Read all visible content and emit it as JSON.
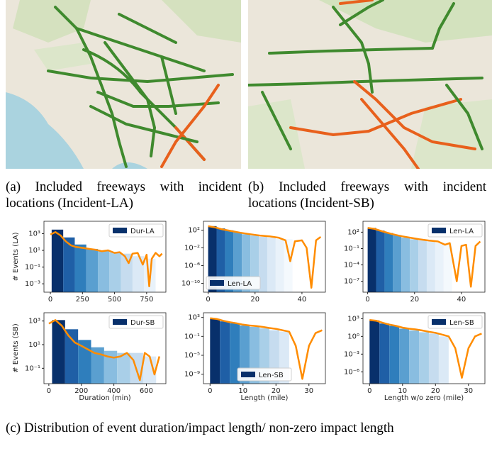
{
  "captions": {
    "a": "(a) Included freeways with incident locations (Incident-LA)",
    "b": "(b) Included freeways with incident locations (Incident-SB)",
    "c": "(c) Distribution of event duration/impact length/ non-zero impact length"
  },
  "chart_data": [
    {
      "type": "histogram",
      "name": "Dur-LA",
      "ylabel": "# Events (LA)",
      "legend": "upper right",
      "log": true,
      "bins": [
        10,
        100,
        190,
        280,
        370,
        460,
        550,
        640,
        730,
        820
      ],
      "counts": [
        3000,
        350,
        50,
        15,
        10,
        6,
        4,
        2,
        1
      ],
      "colors": [
        "#08306b",
        "#1f5fa6",
        "#2f7ebc",
        "#5a9fd0",
        "#89bde0",
        "#a9cfe8",
        "#c6dcef",
        "#dbe9f6",
        "#e9f2fa"
      ],
      "kde": {
        "color": "#ff8c00",
        "x": [
          0,
          40,
          80,
          120,
          160,
          200,
          250,
          300,
          350,
          400,
          450,
          500,
          540,
          580,
          610,
          640,
          680,
          720,
          750,
          770,
          790,
          820,
          850,
          870
        ],
        "values": [
          800,
          1500,
          600,
          120,
          40,
          25,
          20,
          15,
          12,
          8,
          10,
          5,
          6,
          2,
          0.3,
          4,
          5,
          0.2,
          3,
          0.0005,
          1,
          5,
          2,
          4
        ]
      },
      "xlim": [
        -50,
        900
      ],
      "xticks": [
        0,
        250,
        500,
        750
      ],
      "ylim": [
        0.0001,
        30000
      ],
      "yticks": [
        {
          "value": 1000,
          "label": "10³"
        },
        {
          "value": 10,
          "label": "10¹"
        },
        {
          "value": 0.1,
          "label": "10⁻¹"
        },
        {
          "value": 0.001,
          "label": "10⁻³"
        }
      ]
    },
    {
      "type": "histogram",
      "name": "Len-LA",
      "legend": "lower left",
      "log": true,
      "bins": [
        0,
        3.6,
        7.2,
        10.8,
        14.4,
        18,
        21.6,
        25.2,
        28.8,
        32.4,
        36
      ],
      "counts": [
        800,
        250,
        90,
        35,
        12,
        6,
        3,
        2,
        1,
        1
      ],
      "colors": [
        "#08306b",
        "#1f5fa6",
        "#2f7ebc",
        "#5a9fd0",
        "#89bde0",
        "#a9cfe8",
        "#c6dcef",
        "#dbe9f6",
        "#e9f2fa",
        "#f4f9fd"
      ],
      "kde": {
        "color": "#ff8c00",
        "x": [
          0,
          3,
          6,
          10,
          14,
          18,
          22,
          26,
          30,
          33,
          35,
          37,
          40,
          42,
          44,
          46,
          48
        ],
        "values": [
          800,
          400,
          150,
          60,
          25,
          12,
          6,
          4,
          2,
          0.5,
          1e-05,
          0.3,
          0.5,
          0.01,
          1e-11,
          0.5,
          3
        ]
      },
      "xlim": [
        -2,
        50
      ],
      "xticks": [
        0,
        20,
        40
      ],
      "ylim": [
        1e-12,
        10000
      ],
      "yticks": [
        {
          "value": 100,
          "label": "10²"
        },
        {
          "value": 0.01,
          "label": "10⁻²"
        },
        {
          "value": 1e-06,
          "label": "10⁻⁶"
        },
        {
          "value": 1e-10,
          "label": "10⁻¹⁰"
        }
      ]
    },
    {
      "type": "histogram",
      "name": "Len-LA",
      "legend": "upper right",
      "log": true,
      "bins": [
        0,
        3.6,
        7.2,
        10.8,
        14.4,
        18,
        21.6,
        25.2,
        28.8,
        32.4,
        36
      ],
      "counts": [
        600,
        200,
        70,
        30,
        10,
        5,
        3,
        2,
        1,
        1
      ],
      "colors": [
        "#08306b",
        "#1f5fa6",
        "#2f7ebc",
        "#5a9fd0",
        "#89bde0",
        "#a9cfe8",
        "#c6dcef",
        "#dbe9f6",
        "#e9f2fa",
        "#f4f9fd"
      ],
      "kde": {
        "color": "#ff8c00",
        "x": [
          0,
          3,
          6,
          10,
          14,
          18,
          22,
          26,
          30,
          33,
          35,
          38,
          40,
          42,
          44,
          46,
          48
        ],
        "values": [
          600,
          400,
          150,
          50,
          20,
          10,
          5,
          3,
          2,
          0.5,
          1,
          1e-07,
          0.3,
          0.5,
          1e-08,
          0.3,
          2
        ]
      },
      "xlim": [
        -2,
        50
      ],
      "xticks": [
        0,
        20,
        40
      ],
      "ylim": [
        1e-09,
        10000
      ],
      "yticks": [
        {
          "value": 100,
          "label": "10²"
        },
        {
          "value": 0.1,
          "label": "10⁻¹"
        },
        {
          "value": 0.0001,
          "label": "10⁻⁴"
        },
        {
          "value": 1e-07,
          "label": "10⁻⁷"
        }
      ]
    },
    {
      "type": "histogram",
      "name": "Dur-SB",
      "ylabel": "# Events (SB)",
      "xlabel": "Duration (min)",
      "legend": "upper right",
      "log": true,
      "bins": [
        20,
        100,
        180,
        260,
        340,
        420,
        500,
        580,
        660
      ],
      "counts": [
        1200,
        200,
        25,
        6,
        3,
        2,
        2,
        1
      ],
      "colors": [
        "#08306b",
        "#1f5fa6",
        "#2f7ebc",
        "#5a9fd0",
        "#89bde0",
        "#a9cfe8",
        "#c6dcef",
        "#dbe9f6"
      ],
      "kde": {
        "color": "#ff8c00",
        "x": [
          0,
          40,
          80,
          120,
          160,
          200,
          240,
          280,
          320,
          360,
          400,
          440,
          480,
          520,
          560,
          590,
          620,
          650,
          680
        ],
        "values": [
          600,
          1200,
          400,
          60,
          15,
          8,
          4,
          2,
          1.5,
          1,
          0.8,
          1,
          2,
          0.5,
          0.01,
          2,
          1,
          0.03,
          1
        ]
      },
      "xlim": [
        -30,
        720
      ],
      "xticks": [
        0,
        200,
        400,
        600
      ],
      "ylim": [
        0.005,
        5000
      ],
      "yticks": [
        {
          "value": 1000,
          "label": "10³"
        },
        {
          "value": 10,
          "label": "10¹"
        },
        {
          "value": 0.1,
          "label": "10⁻¹"
        }
      ]
    },
    {
      "type": "histogram",
      "name": "Len-SB",
      "xlabel": "Length (mile)",
      "legend": "lower center",
      "log": true,
      "bins": [
        0,
        3,
        6,
        9,
        12,
        15,
        18,
        21,
        24
      ],
      "counts": [
        500,
        150,
        60,
        20,
        10,
        5,
        2,
        1
      ],
      "colors": [
        "#08306b",
        "#1f5fa6",
        "#2f7ebc",
        "#5a9fd0",
        "#89bde0",
        "#a9cfe8",
        "#c6dcef",
        "#dbe9f6"
      ],
      "kde": {
        "color": "#ff8c00",
        "x": [
          0,
          2,
          4,
          6,
          8,
          10,
          12,
          14,
          16,
          18,
          20,
          22,
          24,
          26,
          28,
          30,
          32,
          34
        ],
        "values": [
          700,
          500,
          200,
          100,
          60,
          30,
          20,
          15,
          10,
          6,
          4,
          2,
          1,
          0.001,
          1e-10,
          0.001,
          0.5,
          2
        ]
      },
      "xlim": [
        -2,
        35
      ],
      "xticks": [
        0,
        10,
        20,
        30
      ],
      "ylim": [
        1e-11,
        10000
      ],
      "yticks": [
        {
          "value": 1000,
          "label": "10³"
        },
        {
          "value": 0.1,
          "label": "10⁻¹"
        },
        {
          "value": 1e-05,
          "label": "10⁻⁵"
        },
        {
          "value": 1e-09,
          "label": "10⁻⁹"
        }
      ]
    },
    {
      "type": "histogram",
      "name": "Len-SB",
      "xlabel": "Length w/o zero (mile)",
      "legend": "upper right",
      "log": true,
      "bins": [
        0,
        3,
        6,
        9,
        12,
        15,
        18,
        21,
        24
      ],
      "counts": [
        500,
        150,
        60,
        20,
        10,
        5,
        3,
        1
      ],
      "colors": [
        "#08306b",
        "#1f5fa6",
        "#2f7ebc",
        "#5a9fd0",
        "#89bde0",
        "#a9cfe8",
        "#c6dcef",
        "#dbe9f6"
      ],
      "kde": {
        "color": "#ff8c00",
        "x": [
          0,
          2,
          4,
          6,
          8,
          10,
          12,
          14,
          16,
          18,
          20,
          22,
          24,
          26,
          28,
          30,
          32,
          34
        ],
        "values": [
          600,
          450,
          200,
          100,
          60,
          30,
          20,
          15,
          10,
          6,
          4,
          2,
          1,
          0.01,
          1e-07,
          0.01,
          1,
          3
        ]
      },
      "xlim": [
        -2,
        35
      ],
      "xticks": [
        0,
        10,
        20,
        30
      ],
      "ylim": [
        1e-08,
        10000
      ],
      "yticks": [
        {
          "value": 1000,
          "label": "10³"
        },
        {
          "value": 1,
          "label": "10⁰"
        },
        {
          "value": 0.001,
          "label": "10⁻³"
        },
        {
          "value": 1e-06,
          "label": "10⁻⁶"
        }
      ]
    }
  ]
}
